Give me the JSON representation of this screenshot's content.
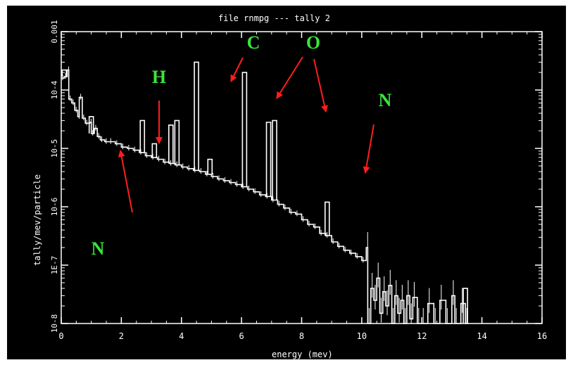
{
  "chart_data": {
    "type": "line",
    "title": "file rnmpg --- tally 2",
    "xlabel": "energy (mev)",
    "ylabel": "tally/mev/particle",
    "x_ticks": [
      0,
      2,
      4,
      6,
      8,
      10,
      12,
      14,
      16
    ],
    "x_tick_labels": [
      "0",
      "2",
      "4",
      "6",
      "8",
      "10",
      "12",
      "14",
      "16"
    ],
    "y_ticks": [
      1e-08,
      1e-07,
      1e-06,
      1e-05,
      0.0001,
      0.001
    ],
    "y_tick_labels": [
      "10-8",
      "1E-7",
      "10-6",
      "10-5",
      "10-4",
      "0.001"
    ],
    "xlim": [
      0,
      16
    ],
    "ylim": [
      1e-08,
      0.001
    ],
    "y_scale": "log",
    "grid": false,
    "series_color": "#ffffff",
    "baseline": [
      [
        0.0,
        0.00016
      ],
      [
        0.1,
        0.00017
      ],
      [
        0.2,
        0.00022
      ],
      [
        0.25,
        7e-05
      ],
      [
        0.35,
        6e-05
      ],
      [
        0.45,
        4.5e-05
      ],
      [
        0.55,
        3.5e-05
      ],
      [
        0.6,
        7.5e-05
      ],
      [
        0.7,
        3.3e-05
      ],
      [
        0.8,
        2.7e-05
      ],
      [
        0.95,
        2.8e-05
      ],
      [
        1.0,
        1.8e-05
      ],
      [
        1.1,
        2.2e-05
      ],
      [
        1.2,
        1.6e-05
      ],
      [
        1.3,
        1.4e-05
      ],
      [
        1.45,
        1.3e-05
      ],
      [
        1.6,
        1.3e-05
      ],
      [
        1.8,
        1.2e-05
      ],
      [
        2.0,
        1.05e-05
      ],
      [
        2.2,
        1e-05
      ],
      [
        2.4,
        9.3e-06
      ],
      [
        2.6,
        8.5e-06
      ],
      [
        2.8,
        7.5e-06
      ],
      [
        3.0,
        7e-06
      ],
      [
        3.2,
        6.5e-06
      ],
      [
        3.4,
        5.8e-06
      ],
      [
        3.6,
        5.5e-06
      ],
      [
        3.8,
        5.2e-06
      ],
      [
        4.0,
        4.8e-06
      ],
      [
        4.2,
        4.5e-06
      ],
      [
        4.4,
        4.2e-06
      ],
      [
        4.6,
        4e-06
      ],
      [
        4.8,
        3.6e-06
      ],
      [
        5.0,
        3.3e-06
      ],
      [
        5.2,
        3e-06
      ],
      [
        5.4,
        2.8e-06
      ],
      [
        5.6,
        2.6e-06
      ],
      [
        5.8,
        2.4e-06
      ],
      [
        6.0,
        2.2e-06
      ],
      [
        6.2,
        2e-06
      ],
      [
        6.4,
        1.8e-06
      ],
      [
        6.6,
        1.6e-06
      ],
      [
        6.8,
        1.5e-06
      ],
      [
        7.0,
        1.3e-06
      ],
      [
        7.2,
        1.1e-06
      ],
      [
        7.4,
        9.5e-07
      ],
      [
        7.6,
        8e-07
      ],
      [
        7.8,
        7.5e-07
      ],
      [
        8.0,
        6e-07
      ],
      [
        8.2,
        5e-07
      ],
      [
        8.4,
        4.5e-07
      ],
      [
        8.6,
        3.5e-07
      ],
      [
        8.8,
        3.2e-07
      ],
      [
        9.0,
        2.5e-07
      ],
      [
        9.2,
        2.1e-07
      ],
      [
        9.4,
        1.8e-07
      ],
      [
        9.6,
        1.6e-07
      ],
      [
        9.8,
        1.4e-07
      ],
      [
        10.0,
        1.2e-07
      ],
      [
        10.15,
        2e-07
      ],
      [
        10.2,
        1e-08
      ],
      [
        10.3,
        4e-08
      ],
      [
        10.4,
        2.5e-08
      ],
      [
        10.5,
        6e-08
      ],
      [
        10.6,
        1.5e-08
      ],
      [
        10.7,
        3.5e-08
      ],
      [
        10.8,
        2e-08
      ],
      [
        10.9,
        4.5e-08
      ],
      [
        11.0,
        1e-08
      ],
      [
        11.1,
        3e-08
      ],
      [
        11.2,
        1.5e-08
      ],
      [
        11.3,
        2.5e-08
      ],
      [
        11.4,
        1e-08
      ],
      [
        11.5,
        3e-08
      ],
      [
        11.6,
        1.2e-08
      ],
      [
        11.7,
        2.8e-08
      ],
      [
        11.85,
        1e-08
      ],
      [
        12.0,
        1e-08
      ],
      [
        12.2,
        2.2e-08
      ],
      [
        12.4,
        1e-08
      ],
      [
        12.6,
        2.5e-08
      ],
      [
        12.8,
        1e-08
      ],
      [
        13.0,
        3e-08
      ],
      [
        13.1,
        1e-08
      ],
      [
        13.3,
        2.2e-08
      ],
      [
        13.45,
        1e-08
      ]
    ],
    "peaks": [
      [
        0.1,
        0.00022
      ],
      [
        1.0,
        3.5e-05
      ],
      [
        2.7,
        3e-05
      ],
      [
        3.1,
        1.2e-05
      ],
      [
        3.65,
        2.5e-05
      ],
      [
        3.85,
        3e-05
      ],
      [
        4.5,
        0.0003
      ],
      [
        4.95,
        6.5e-06
      ],
      [
        6.1,
        0.0002
      ],
      [
        6.9,
        2.8e-05
      ],
      [
        7.1,
        3e-05
      ],
      [
        8.85,
        1.2e-06
      ],
      [
        13.45,
        4e-08
      ]
    ],
    "annotations": [
      {
        "text": "C",
        "color": "#39e639"
      },
      {
        "text": "O",
        "color": "#39e639"
      },
      {
        "text": "H",
        "color": "#39e639"
      },
      {
        "text": "N",
        "color": "#39e639"
      },
      {
        "text": "N",
        "color": "#39e639"
      }
    ],
    "arrow_color": "#ff1e1e"
  }
}
